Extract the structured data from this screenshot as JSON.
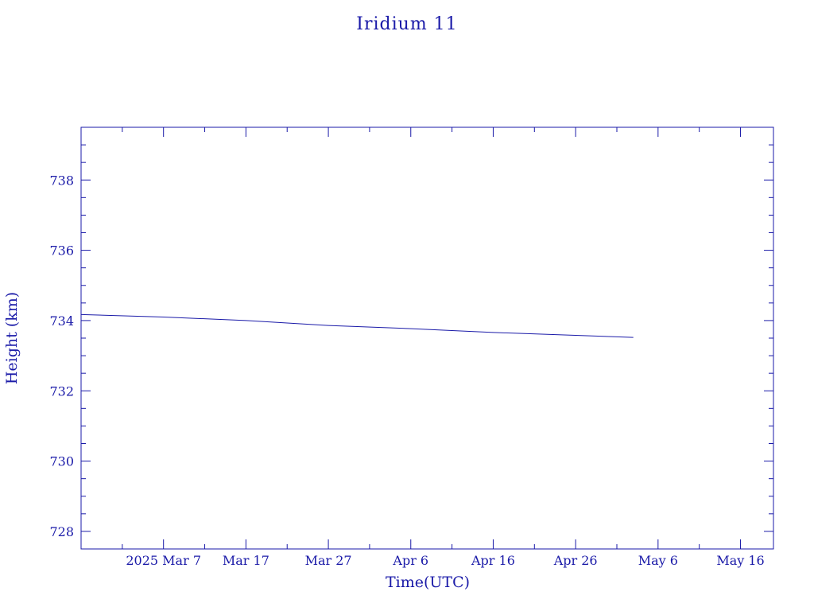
{
  "chart_data": {
    "type": "line",
    "title": "Iridium 11",
    "xlabel": "Time(UTC)",
    "ylabel": "Height (km)",
    "x_tick_labels": [
      "2025 Mar  7",
      "Mar 17",
      "Mar 27",
      "Apr  6",
      "Apr 16",
      "Apr 26",
      "May  6",
      "May 16"
    ],
    "x_tick_dates": [
      "2025-03-07",
      "2025-03-17",
      "2025-03-27",
      "2025-04-06",
      "2025-04-16",
      "2025-04-26",
      "2025-05-06",
      "2025-05-16"
    ],
    "xlim": [
      "2025-02-25",
      "2025-05-20"
    ],
    "y_tick_labels": [
      "728",
      "730",
      "732",
      "734",
      "736",
      "738"
    ],
    "y_ticks": [
      728,
      730,
      732,
      734,
      736,
      738
    ],
    "ylim": [
      727.5,
      739.5
    ],
    "grid": false,
    "series": [
      {
        "color": "#1a1aa8",
        "x": [
          "2025-02-25",
          "2025-03-07",
          "2025-03-17",
          "2025-03-24",
          "2025-03-27",
          "2025-04-06",
          "2025-04-16",
          "2025-04-26",
          "2025-05-03"
        ],
        "y": [
          734.17,
          734.1,
          734.0,
          733.9,
          733.86,
          733.77,
          733.66,
          733.58,
          733.52
        ]
      }
    ]
  }
}
